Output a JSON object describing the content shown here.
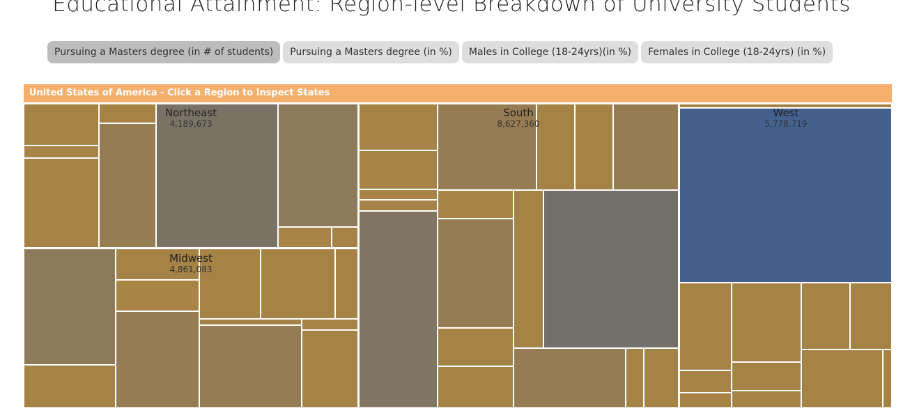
{
  "page": {
    "title": "Educational Attainment: Region-level Breakdown of University Students"
  },
  "tabs": [
    {
      "label": "Pursuing a Masters degree (in # of students)",
      "active": true
    },
    {
      "label": "Pursuing a Masters degree (in %)",
      "active": false
    },
    {
      "label": "Males in College (18-24yrs)(in %)",
      "active": false
    },
    {
      "label": "Females in College (18-24yrs) (in %)",
      "active": false
    }
  ],
  "breadcrumb": "United States of America - Click a Region to Inspect States",
  "chart_data": {
    "type": "treemap",
    "title": "Educational Attainment: Region-level Breakdown of University Students",
    "series": [
      {
        "name": "Northeast",
        "value": 4189673
      },
      {
        "name": "South",
        "value": 8627360
      },
      {
        "name": "West",
        "value": 5778719
      },
      {
        "name": "Midwest",
        "value": 4861083
      }
    ],
    "value_labels": {
      "Northeast": "4,189,673",
      "South": "8,627,360",
      "West": "5,778,719",
      "Midwest": "4,861,083"
    }
  },
  "colors": {
    "header": "#f5b06e",
    "highlight_state": "#44608d",
    "palette": [
      "#a58246",
      "#a98447",
      "#967c53",
      "#8d7a5b",
      "#817663",
      "#7a7265",
      "#737069"
    ]
  }
}
